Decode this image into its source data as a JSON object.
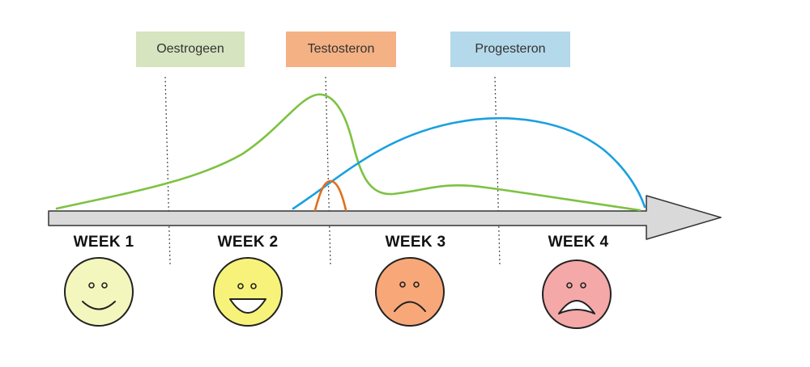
{
  "hormones": {
    "oestrogen": {
      "label": "Oestrogeen",
      "box_color": "#d6e4bf",
      "curve_color": "#7dc242"
    },
    "testosterone": {
      "label": "Testosteron",
      "box_color": "#f4b183",
      "curve_color": "#e0701e"
    },
    "progesterone": {
      "label": "Progesteron",
      "box_color": "#b4d9ea",
      "curve_color": "#1aa0e0"
    }
  },
  "weeks": [
    {
      "label": "WEEK 1",
      "mood": "happy",
      "face_color": "#f3f7bd"
    },
    {
      "label": "WEEK 2",
      "mood": "very-happy",
      "face_color": "#f7f37a"
    },
    {
      "label": "WEEK 3",
      "mood": "sad",
      "face_color": "#f8a878"
    },
    {
      "label": "WEEK 4",
      "mood": "very-sad",
      "face_color": "#f4a8a8"
    }
  ],
  "axis": {
    "fill_color": "#d9d9d9"
  }
}
